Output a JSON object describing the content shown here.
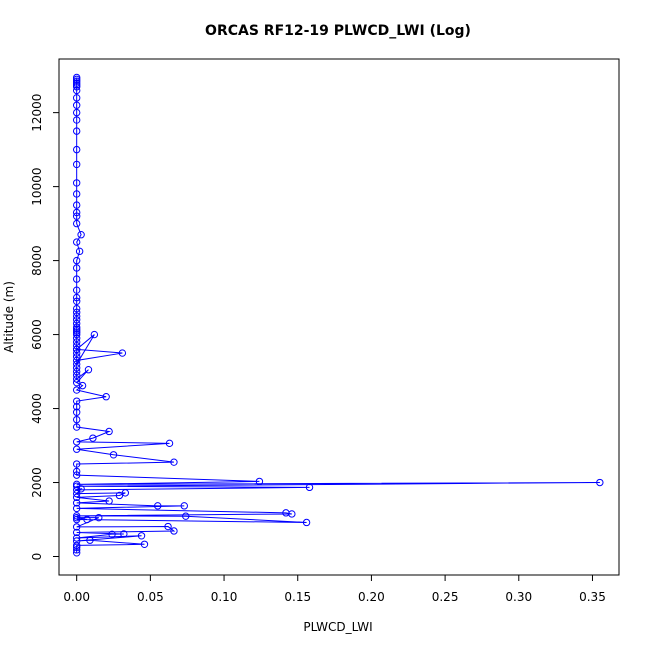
{
  "chart_data": {
    "type": "line",
    "title": "ORCAS RF12-19 PLWCD_LWI (Log)",
    "xlabel": "PLWCD_LWI",
    "ylabel": "Altitude (m)",
    "xlim": [
      -0.012,
      0.368
    ],
    "ylim": [
      -500,
      13450
    ],
    "x_ticks": [
      0.0,
      0.05,
      0.1,
      0.15,
      0.2,
      0.25,
      0.3,
      0.35
    ],
    "x_tick_labels": [
      "0.00",
      "0.05",
      "0.10",
      "0.15",
      "0.20",
      "0.25",
      "0.30",
      "0.35"
    ],
    "y_ticks": [
      0,
      2000,
      4000,
      6000,
      8000,
      10000,
      12000
    ],
    "y_tick_labels": [
      "0",
      "2000",
      "4000",
      "6000",
      "8000",
      "10000",
      "12000"
    ],
    "grid": false,
    "legend": "none",
    "series": [
      {
        "color": "#0000ff",
        "marker": "open-circle",
        "x": [
          0.0,
          0.0,
          0.0,
          0.0,
          0.0,
          0.0,
          0.0,
          0.0,
          0.0,
          0.0,
          0.0,
          0.0,
          0.0,
          0.0,
          0.0,
          0.0,
          0.0,
          0.0,
          0.0,
          0.0,
          0.003,
          0.0,
          0.002,
          0.0,
          0.0,
          0.0,
          0.0,
          0.0,
          0.0,
          0.0,
          0.0,
          0.0,
          0.0,
          0.0,
          0.0,
          0.0,
          0.0,
          0.0,
          0.0,
          0.0,
          0.0,
          0.0,
          0.0,
          0.0,
          0.0,
          0.0,
          0.012,
          0.0,
          0.031,
          0.0,
          0.0,
          0.0,
          0.0,
          0.0,
          0.008,
          0.0,
          0.004,
          0.0,
          0.02,
          0.0,
          0.0,
          0.0,
          0.0,
          0.0,
          0.022,
          0.011,
          0.0,
          0.063,
          0.0,
          0.025,
          0.066,
          0.0,
          0.0,
          0.0,
          0.124,
          0.0,
          0.355,
          0.0,
          0.158,
          0.0,
          0.003,
          0.0,
          0.033,
          0.029,
          0.0,
          0.022,
          0.0,
          0.055,
          0.073,
          0.0,
          0.142,
          0.146,
          0.0,
          0.074,
          0.156,
          0.0,
          0.007,
          0.0,
          0.015,
          0.0,
          0.062,
          0.066,
          0.0,
          0.032,
          0.024,
          0.0,
          0.044,
          0.0,
          0.009,
          0.046,
          0.0,
          0.0,
          0.0,
          0.0
        ],
        "y": [
          12950,
          12900,
          12850,
          12800,
          12750,
          12700,
          12600,
          12400,
          12200,
          12000,
          11800,
          11500,
          11000,
          10600,
          10100,
          9800,
          9500,
          9300,
          9200,
          9000,
          8700,
          8500,
          8250,
          8000,
          7800,
          7500,
          7200,
          7000,
          6900,
          6700,
          6600,
          6500,
          6400,
          6300,
          6200,
          6150,
          6100,
          6050,
          6000,
          5900,
          5800,
          5700,
          5600,
          5500,
          5400,
          5200,
          6000,
          5600,
          5500,
          5300,
          5100,
          5000,
          4900,
          4800,
          5050,
          4700,
          4620,
          4500,
          4320,
          4200,
          4050,
          3900,
          3700,
          3500,
          3380,
          3200,
          3100,
          3060,
          2900,
          2750,
          2550,
          2500,
          2300,
          2200,
          2030,
          1950,
          2000,
          1900,
          1870,
          1800,
          1830,
          1700,
          1720,
          1650,
          1600,
          1500,
          1450,
          1370,
          1370,
          1300,
          1180,
          1150,
          1100,
          1090,
          920,
          1000,
          1000,
          1050,
          1050,
          800,
          810,
          690,
          650,
          610,
          600,
          500,
          560,
          420,
          440,
          330,
          300,
          250,
          180,
          100
        ]
      }
    ]
  }
}
